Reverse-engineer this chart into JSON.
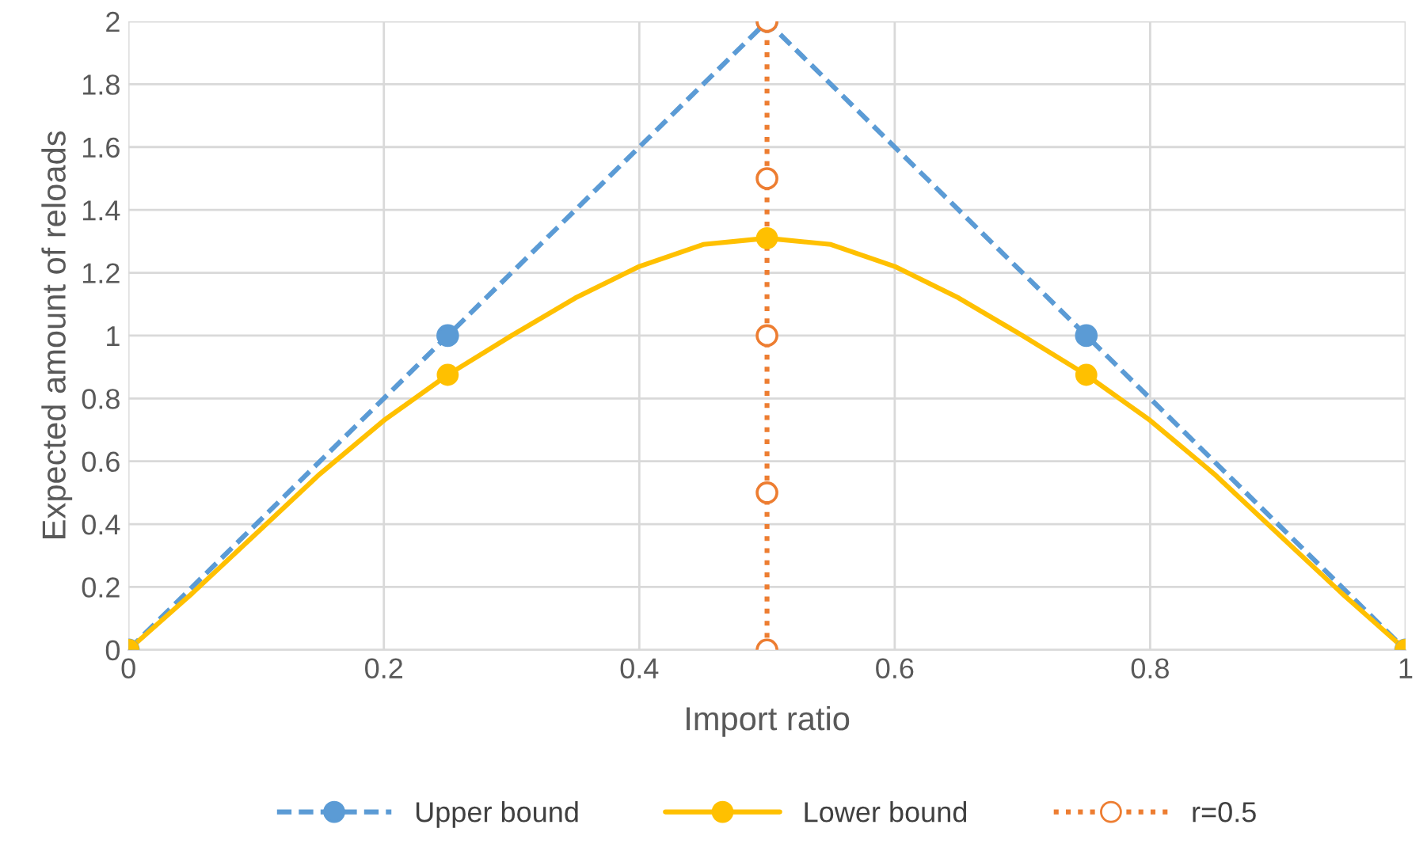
{
  "chart_data": {
    "type": "line",
    "xlabel": "Import ratio",
    "ylabel": "Expected amount of reloads",
    "xlim": [
      0,
      1
    ],
    "xticks": [
      0,
      0.2,
      0.4,
      0.6,
      0.8,
      1
    ],
    "ylim": [
      0,
      2
    ],
    "yticks": [
      0,
      0.2,
      0.4,
      0.6,
      0.8,
      1,
      1.2,
      1.4,
      1.6,
      1.8,
      2
    ],
    "grid": true,
    "legend": "bottom",
    "marker": "circle",
    "series": [
      {
        "name": "Upper bound",
        "color": "#5b9bd5",
        "line_style": "dashed",
        "x": [
          0,
          0.25,
          0.5,
          0.75,
          1
        ],
        "values": [
          0,
          1,
          2,
          1,
          0
        ]
      },
      {
        "name": "Lower bound",
        "color": "#ffc000",
        "line_style": "solid",
        "marker": "none",
        "x": [
          0,
          0.05,
          0.1,
          0.15,
          0.2,
          0.25,
          0.3,
          0.35,
          0.4,
          0.45,
          0.5,
          0.55,
          0.6,
          0.65,
          0.7,
          0.75,
          0.8,
          0.85,
          0.9,
          0.95,
          1
        ],
        "values": [
          0,
          0.18,
          0.37,
          0.56,
          0.73,
          0.875,
          1.0,
          1.12,
          1.22,
          1.29,
          1.31,
          1.29,
          1.22,
          1.12,
          1.0,
          0.875,
          0.73,
          0.56,
          0.37,
          0.18,
          0
        ]
      },
      {
        "type": "scatter",
        "color": "#ffc000",
        "x": [
          0,
          0.25,
          0.5,
          0.75,
          1
        ],
        "values": [
          0,
          0.875,
          1.31,
          0.875,
          0
        ]
      },
      {
        "name": "r=0.5",
        "color": "#ed7d31",
        "line_style": "dotted",
        "x": [
          0.5,
          0.5,
          0.5,
          0.5,
          0.5
        ],
        "values": [
          0,
          0.5,
          1,
          1.5,
          2
        ]
      }
    ]
  }
}
